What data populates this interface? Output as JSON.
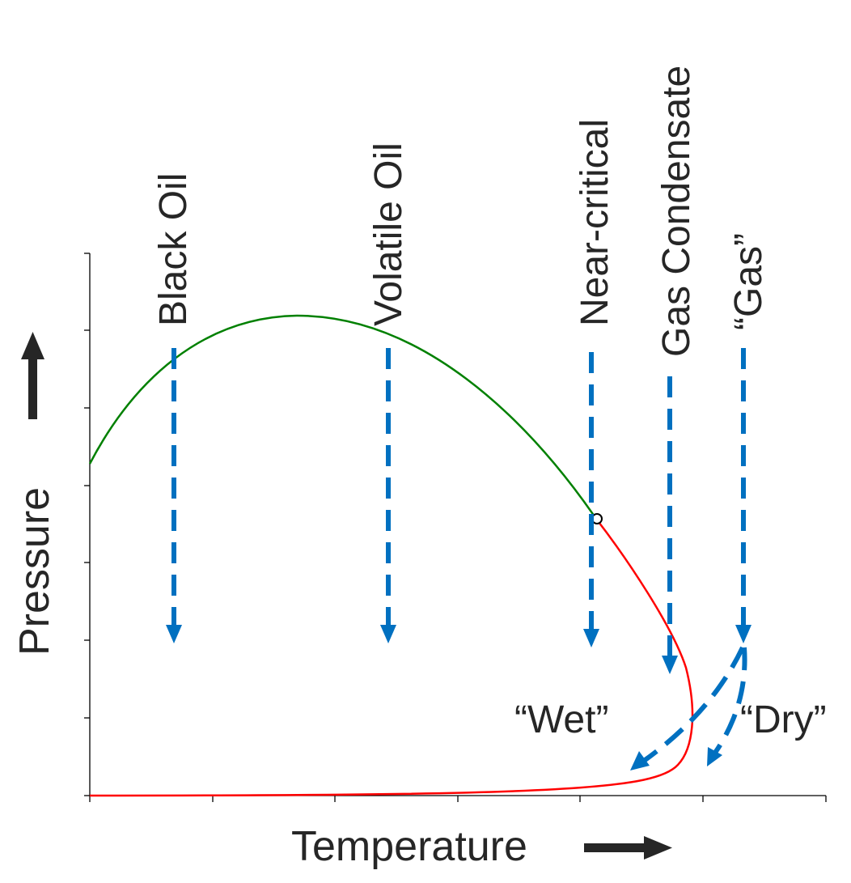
{
  "diagram": {
    "x_axis_label": "Temperature",
    "y_axis_label": "Pressure",
    "fluid_types": [
      {
        "id": "black-oil",
        "label": "Black Oil"
      },
      {
        "id": "volatile-oil",
        "label": "Volatile Oil"
      },
      {
        "id": "near-critical",
        "label": "Near-critical"
      },
      {
        "id": "gas-condensate",
        "label": "Gas Condensate"
      },
      {
        "id": "gas",
        "label": "“Gas”"
      }
    ],
    "gas_branches": {
      "wet_label": "“Wet”",
      "dry_label": "“Dry”"
    },
    "colors": {
      "bubble_point_curve": "#008000",
      "dew_point_curve": "#ff0000",
      "depletion_arrows": "#0070c0",
      "axis_arrows": "#262626",
      "axes": "#000000"
    },
    "icons": {
      "critical_point": "open-circle",
      "axis_direction": "solid-arrow",
      "depletion_path": "dashed-arrow"
    }
  }
}
